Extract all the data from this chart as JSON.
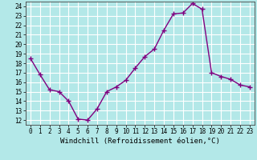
{
  "x": [
    0,
    1,
    2,
    3,
    4,
    5,
    6,
    7,
    8,
    9,
    10,
    11,
    12,
    13,
    14,
    15,
    16,
    17,
    18,
    19,
    20,
    21,
    22,
    23
  ],
  "y": [
    18.5,
    16.8,
    15.2,
    15.0,
    14.0,
    12.1,
    12.0,
    13.2,
    15.0,
    15.5,
    16.2,
    17.5,
    18.7,
    19.5,
    21.5,
    23.2,
    23.3,
    24.3,
    23.7,
    17.0,
    16.6,
    16.3,
    15.7,
    15.5
  ],
  "line_color": "#800080",
  "marker": "+",
  "markersize": 4,
  "linewidth": 1.0,
  "bg_color": "#b3e8e8",
  "grid_color": "#ffffff",
  "xlabel": "Windchill (Refroidissement éolien,°C)",
  "xlabel_fontsize": 6.5,
  "xlim": [
    -0.5,
    23.5
  ],
  "ylim": [
    11.5,
    24.5
  ],
  "yticks": [
    12,
    13,
    14,
    15,
    16,
    17,
    18,
    19,
    20,
    21,
    22,
    23,
    24
  ],
  "xticks": [
    0,
    1,
    2,
    3,
    4,
    5,
    6,
    7,
    8,
    9,
    10,
    11,
    12,
    13,
    14,
    15,
    16,
    17,
    18,
    19,
    20,
    21,
    22,
    23
  ],
  "tick_fontsize": 5.5,
  "xlabel_fontsize_label": 6.5
}
